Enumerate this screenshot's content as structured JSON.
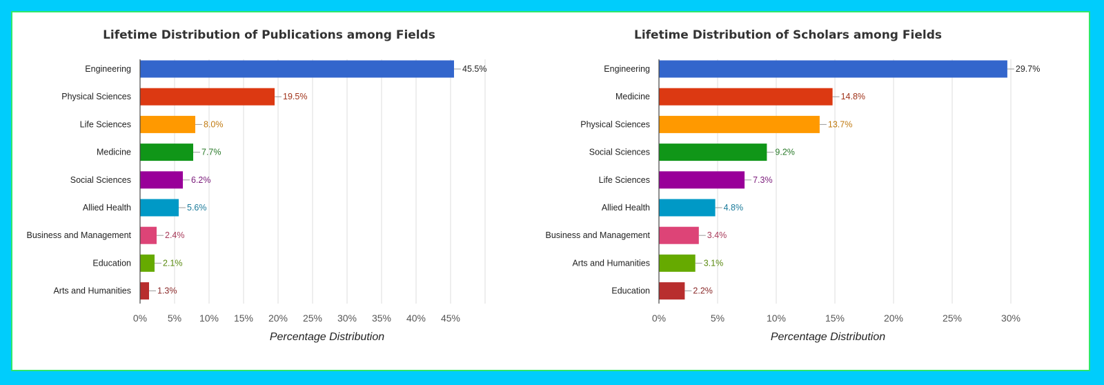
{
  "chart_data": [
    {
      "type": "bar",
      "orientation": "horizontal",
      "title": "Lifetime Distribution of Publications among Fields",
      "xlabel": "Percentage Distribution",
      "ylabel": "",
      "xlim": [
        0,
        50
      ],
      "ticks": [
        "0%",
        "5%",
        "10%",
        "15%",
        "20%",
        "25%",
        "30%",
        "35%",
        "40%",
        "45%"
      ],
      "grid": true,
      "categories": [
        "Engineering",
        "Physical Sciences",
        "Life Sciences",
        "Medicine",
        "Social Sciences",
        "Allied Health",
        "Business and Management",
        "Education",
        "Arts and Humanities"
      ],
      "values": [
        45.5,
        19.5,
        8.0,
        7.7,
        6.2,
        5.6,
        2.4,
        2.1,
        1.3
      ],
      "labels": [
        "45.5%",
        "19.5%",
        "8.0%",
        "7.7%",
        "6.2%",
        "5.6%",
        "2.4%",
        "2.1%",
        "1.3%"
      ],
      "colors": [
        "#3366cc",
        "#dc3912",
        "#ff9900",
        "#109618",
        "#990099",
        "#0099c6",
        "#dd4477",
        "#66aa00",
        "#b82e2e"
      ],
      "label_colors": [
        "#222222",
        "#a0331a",
        "#c07a10",
        "#2a7a2a",
        "#7a1a7a",
        "#1a7a9a",
        "#a83a5a",
        "#5a8a10",
        "#8a2a2a"
      ]
    },
    {
      "type": "bar",
      "orientation": "horizontal",
      "title": "Lifetime Distribution of Scholars among Fields",
      "xlabel": "Percentage Distribution",
      "ylabel": "",
      "xlim": [
        0,
        30
      ],
      "ticks": [
        "0%",
        "5%",
        "10%",
        "15%",
        "20%",
        "25%",
        "30%"
      ],
      "grid": true,
      "categories": [
        "Engineering",
        "Medicine",
        "Physical Sciences",
        "Social Sciences",
        "Life Sciences",
        "Allied Health",
        "Business and Management",
        "Arts and Humanities",
        "Education"
      ],
      "values": [
        29.7,
        14.8,
        13.7,
        9.2,
        7.3,
        4.8,
        3.4,
        3.1,
        2.2
      ],
      "labels": [
        "29.7%",
        "14.8%",
        "13.7%",
        "9.2%",
        "7.3%",
        "4.8%",
        "3.4%",
        "3.1%",
        "2.2%"
      ],
      "colors": [
        "#3366cc",
        "#dc3912",
        "#ff9900",
        "#109618",
        "#990099",
        "#0099c6",
        "#dd4477",
        "#66aa00",
        "#b82e2e"
      ],
      "label_colors": [
        "#222222",
        "#a0331a",
        "#c07a10",
        "#2a7a2a",
        "#7a1a7a",
        "#1a7a9a",
        "#a83a5a",
        "#5a8a10",
        "#8a2a2a"
      ]
    }
  ]
}
